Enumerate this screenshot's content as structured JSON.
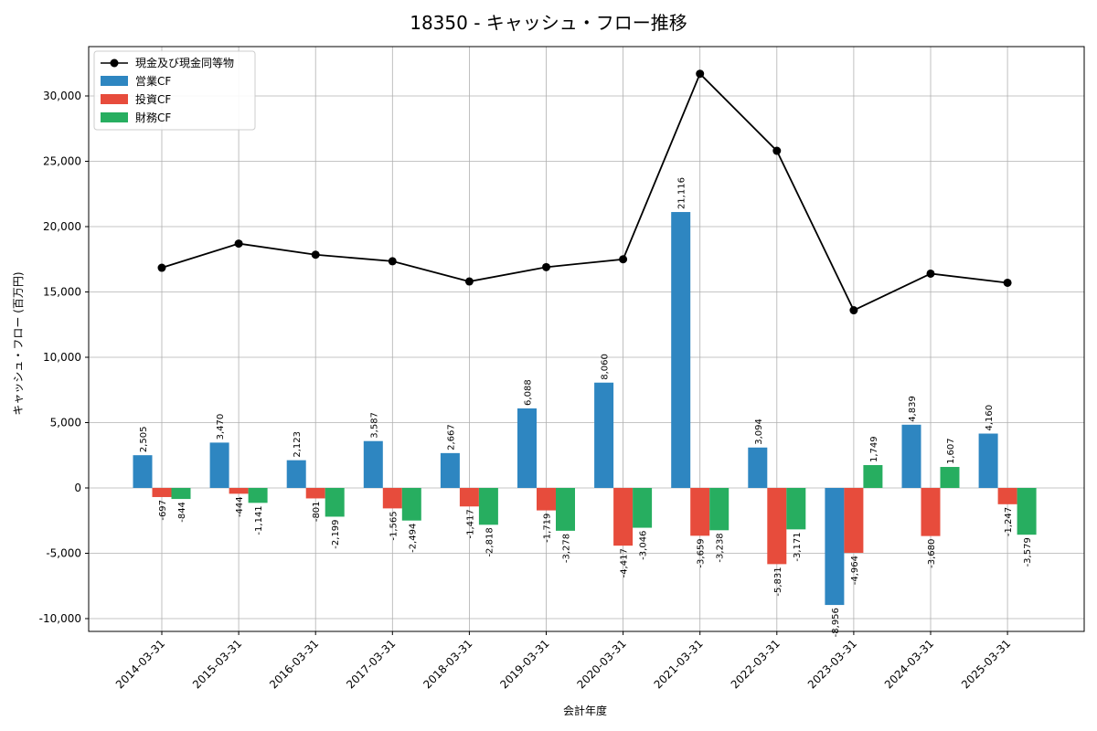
{
  "chart_data": {
    "type": "bar",
    "title": "18350 - キャッシュ・フロー推移",
    "xlabel": "会計年度",
    "ylabel": "キャッシュ・フロー (百万円)",
    "ylim": [
      -10800,
      33600
    ],
    "yticks": [
      -10000,
      -5000,
      0,
      5000,
      10000,
      15000,
      20000,
      25000,
      30000
    ],
    "ytick_labels": [
      "-10,000",
      "-5,000",
      "0",
      "5,000",
      "10,000",
      "15,000",
      "20,000",
      "25,000",
      "30,000"
    ],
    "grid": true,
    "legend_position": "top-left",
    "categories": [
      "2014-03-31",
      "2015-03-31",
      "2016-03-31",
      "2017-03-31",
      "2018-03-31",
      "2019-03-31",
      "2020-03-31",
      "2021-03-31",
      "2022-03-31",
      "2023-03-31",
      "2024-03-31",
      "2025-03-31"
    ],
    "series": [
      {
        "name": "営業CF",
        "kind": "bar",
        "color": "#2e86c1",
        "values": [
          2505,
          3470,
          2123,
          3587,
          2667,
          6088,
          8060,
          21116,
          3094,
          -8956,
          4839,
          4160
        ],
        "labels": [
          "2,505",
          "3,470",
          "2,123",
          "3,587",
          "2,667",
          "6,088",
          "8,060",
          "21,116",
          "3,094",
          "-8,956",
          "4,839",
          "4,160"
        ]
      },
      {
        "name": "投資CF",
        "kind": "bar",
        "color": "#e74c3c",
        "values": [
          -697,
          -444,
          -801,
          -1565,
          -1417,
          -1719,
          -4417,
          -3659,
          -5831,
          -4964,
          -3680,
          -1247
        ],
        "labels": [
          "-697",
          "-444",
          "-801",
          "-1,565",
          "-1,417",
          "-1,719",
          "-4,417",
          "-3,659",
          "-5,831",
          "-4,964",
          "-3,680",
          "-1,247"
        ]
      },
      {
        "name": "財務CF",
        "kind": "bar",
        "color": "#27ae60",
        "values": [
          -844,
          -1141,
          -2199,
          -2494,
          -2818,
          -3278,
          -3046,
          -3238,
          -3171,
          1749,
          1607,
          -3579
        ],
        "labels": [
          "-844",
          "-1,141",
          "-2,199",
          "-2,494",
          "-2,818",
          "-3,278",
          "-3,046",
          "-3,238",
          "-3,171",
          "1,749",
          "1,607",
          "-3,579"
        ]
      },
      {
        "name": "現金及び現金同等物",
        "kind": "line",
        "color": "#000000",
        "values": [
          16850,
          18700,
          17850,
          17350,
          15800,
          16900,
          17500,
          31700,
          25800,
          13600,
          16400,
          15700
        ]
      }
    ]
  }
}
